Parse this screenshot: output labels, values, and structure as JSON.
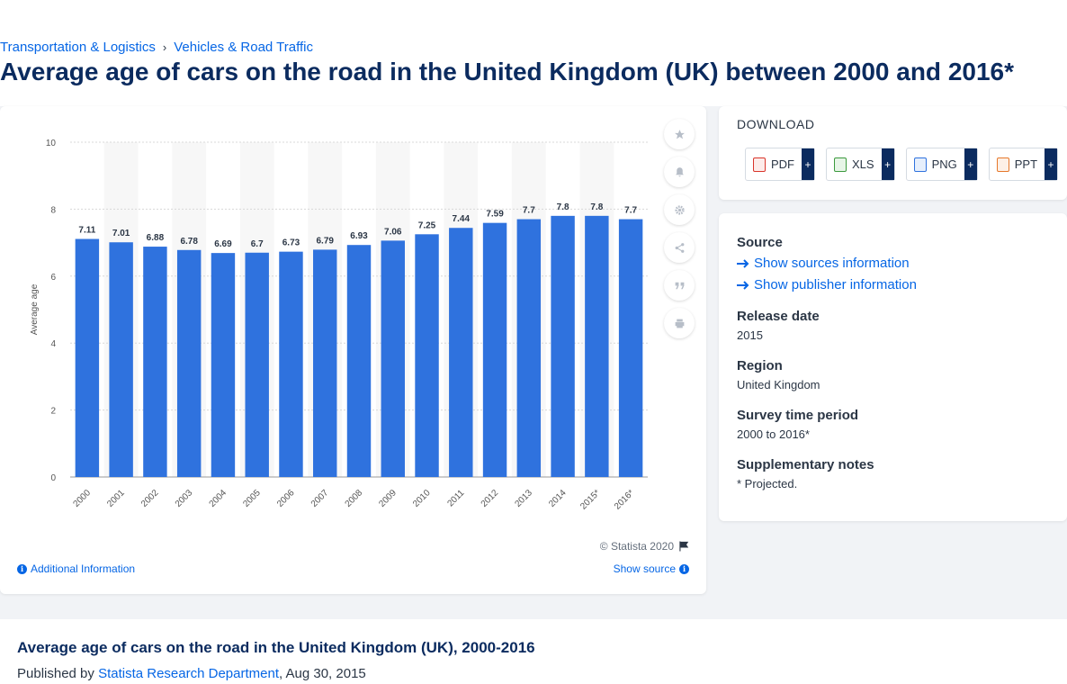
{
  "breadcrumb": {
    "items": [
      "Transportation & Logistics",
      "Vehicles & Road Traffic"
    ],
    "separator": "›"
  },
  "page_title": "Average age of cars on the road in the United Kingdom (UK) between 2000 and 2016*",
  "chart_card": {
    "copyright": "© Statista 2020",
    "additional_info": "Additional Information",
    "show_source": "Show source",
    "toolbar_icons": [
      "star-icon",
      "bell-icon",
      "gear-icon",
      "share-icon",
      "quote-icon",
      "print-icon"
    ]
  },
  "chart_data": {
    "type": "bar",
    "categories": [
      "2000",
      "2001",
      "2002",
      "2003",
      "2004",
      "2005",
      "2006",
      "2007",
      "2008",
      "2009",
      "2010",
      "2011",
      "2012",
      "2013",
      "2014",
      "2015*",
      "2016*"
    ],
    "values": [
      7.11,
      7.01,
      6.88,
      6.78,
      6.69,
      6.7,
      6.73,
      6.79,
      6.93,
      7.06,
      7.25,
      7.44,
      7.59,
      7.7,
      7.8,
      7.8,
      7.7
    ],
    "data_labels": [
      "7.11",
      "7.01",
      "6.88",
      "6.78",
      "6.69",
      "6.7",
      "6.73",
      "6.79",
      "6.93",
      "7.06",
      "7.25",
      "7.44",
      "7.59",
      "7.7",
      "7.8",
      "7.8",
      "7.7"
    ],
    "ylabel": "Average age",
    "xlabel": "",
    "ylim": [
      0,
      10
    ],
    "yticks": [
      0,
      2,
      4,
      6,
      8,
      10
    ],
    "grid": true,
    "bar_color": "#2f72de"
  },
  "download": {
    "title": "DOWNLOAD",
    "buttons": [
      {
        "label": "PDF",
        "plus": "+",
        "icon": "pdf-file-icon",
        "color": "#d9352b"
      },
      {
        "label": "XLS",
        "plus": "+",
        "icon": "xls-file-icon",
        "color": "#3c9a3e"
      },
      {
        "label": "PNG",
        "plus": "+",
        "icon": "png-file-icon",
        "color": "#2f72de"
      },
      {
        "label": "PPT",
        "plus": "+",
        "icon": "ppt-file-icon",
        "color": "#e6782b"
      }
    ]
  },
  "source_panel": {
    "source_heading": "Source",
    "show_sources": "Show sources information",
    "show_publisher": "Show publisher information",
    "release_heading": "Release date",
    "release_value": "2015",
    "region_heading": "Region",
    "region_value": "United Kingdom",
    "survey_heading": "Survey time period",
    "survey_value": "2000 to 2016*",
    "notes_heading": "Supplementary notes",
    "notes_value": "* Projected."
  },
  "bottom": {
    "title": "Average age of cars on the road in the United Kingdom (UK), 2000-2016",
    "published_prefix": "Published by",
    "publisher": "Statista Research Department",
    "date": ", Aug 30, 2015"
  },
  "colors": {
    "accent": "#0666e5",
    "title": "#0b2b5f",
    "bar": "#2f72de"
  }
}
